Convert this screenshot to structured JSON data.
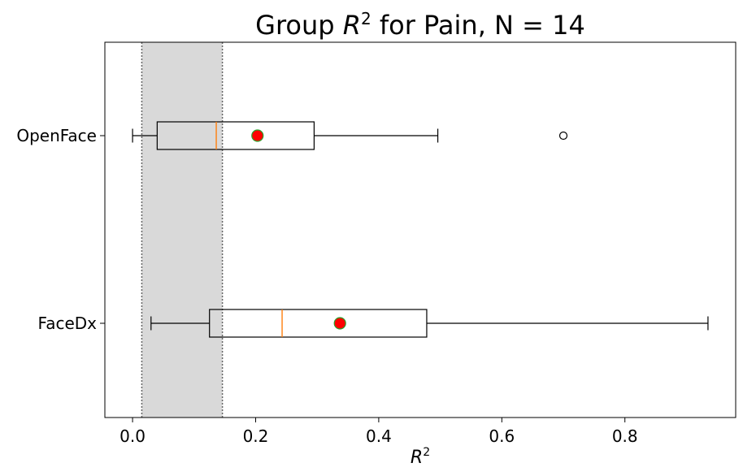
{
  "chart_data": {
    "type": "boxplot",
    "orientation": "horizontal",
    "title": {
      "prefix": "Group ",
      "symbol": "R",
      "superscript": "2",
      "suffix": " for Pain, N = 14"
    },
    "xlabel": {
      "symbol": "R",
      "superscript": "2"
    },
    "xlim": [
      -0.045,
      0.98
    ],
    "x_ticks": [
      {
        "value": 0.0,
        "label": "0.0"
      },
      {
        "value": 0.2,
        "label": "0.2"
      },
      {
        "value": 0.4,
        "label": "0.4"
      },
      {
        "value": 0.6,
        "label": "0.6"
      },
      {
        "value": 0.8,
        "label": "0.8"
      }
    ],
    "shaded_band": {
      "from": 0.015,
      "to": 0.146,
      "color": "#d9d9d9",
      "edge_style": "dotted"
    },
    "categories": [
      "OpenFace",
      "FaceDx"
    ],
    "boxes": [
      {
        "category": "OpenFace",
        "whisker_low": 0.0,
        "q1": 0.04,
        "median": 0.136,
        "q3": 0.295,
        "whisker_high": 0.496,
        "mean": 0.203,
        "outliers": [
          0.7
        ]
      },
      {
        "category": "FaceDx",
        "whisker_low": 0.03,
        "q1": 0.125,
        "median": 0.243,
        "q3": 0.478,
        "whisker_high": 0.935,
        "mean": 0.337,
        "outliers": []
      }
    ],
    "colors": {
      "median": "#ff7f0e",
      "mean_fill": "#ff0000",
      "mean_edge": "#2ca02c",
      "box_edge": "#000000"
    },
    "grid": false,
    "legend": "none"
  }
}
